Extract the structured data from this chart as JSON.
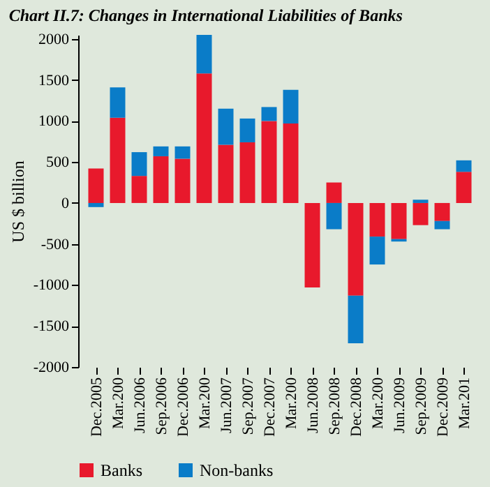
{
  "chart_data": {
    "type": "bar",
    "title": "Chart II.7: Changes in International Liabilities of Banks",
    "ylabel": "US $ billion",
    "stacked": true,
    "categories": [
      "Dec.2005",
      "Mar.200",
      "Jun.2006",
      "Sep.2006",
      "Dec.2006",
      "Mar.200",
      "Jun.2007",
      "Sep.2007",
      "Dec.2007",
      "Mar.200",
      "Jun.2008",
      "Sep.2008",
      "Dec.2008",
      "Mar.200",
      "Jun.2009",
      "Sep.2009",
      "Dec.2009",
      "Mar.201"
    ],
    "series": [
      {
        "name": "Banks",
        "color": "#e8192c",
        "values": [
          420,
          1040,
          330,
          570,
          540,
          1580,
          710,
          740,
          1000,
          970,
          -1030,
          250,
          -1130,
          -410,
          -440,
          -270,
          -220,
          380
        ]
      },
      {
        "name": "Non-banks",
        "color": "#0a7cc8",
        "values": [
          -50,
          370,
          290,
          120,
          150,
          470,
          440,
          290,
          170,
          410,
          0,
          -320,
          -580,
          -340,
          -30,
          40,
          -100,
          140
        ]
      }
    ],
    "ylim": [
      -2000,
      2050
    ],
    "yticks": [
      -2000,
      -1500,
      -1000,
      -500,
      0,
      500,
      1000,
      1500,
      2000
    ],
    "grid": false,
    "legend": "bottom"
  }
}
